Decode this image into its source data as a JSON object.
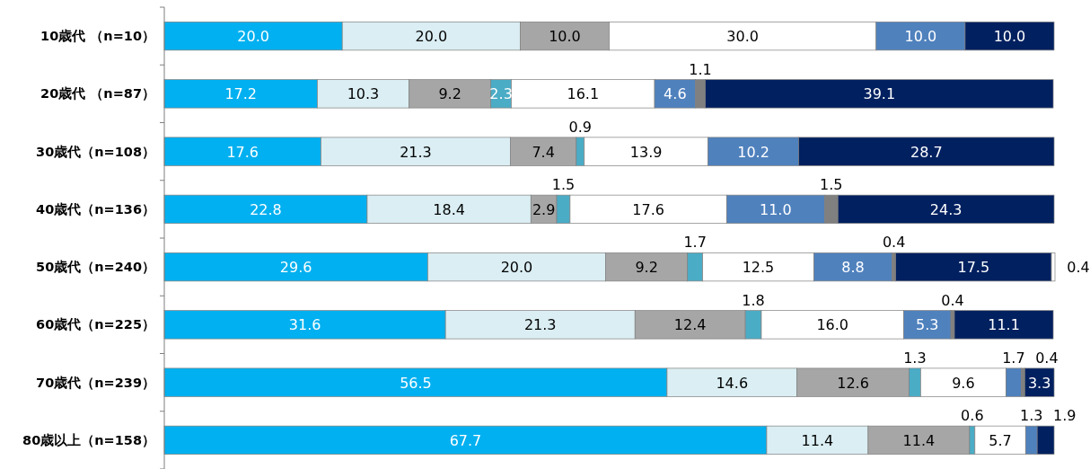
{
  "chart_data": {
    "type": "bar",
    "orientation": "horizontal",
    "stacked": true,
    "categories": [
      "10歳代 （n=10）",
      "20歳代 （n=87）",
      "30歳代（n=108）",
      "40歳代（n=136）",
      "50歳代（n=240）",
      "60歳代（n=225）",
      "70歳代（n=239）",
      "80歳以上（n=158）"
    ],
    "series": [
      {
        "color": "#00b0f0",
        "values": [
          20.0,
          17.2,
          17.6,
          22.8,
          29.6,
          31.6,
          56.5,
          67.7
        ],
        "value_labels": [
          "20.0",
          "17.2",
          "17.6",
          "22.8",
          "29.6",
          "31.6",
          "56.5",
          "67.7"
        ]
      },
      {
        "color": "#daeef3",
        "values": [
          20.0,
          10.3,
          21.3,
          18.4,
          20.0,
          21.3,
          14.6,
          11.4
        ],
        "value_labels": [
          "20.0",
          "10.3",
          "21.3",
          "18.4",
          "20.0",
          "21.3",
          "14.6",
          "11.4"
        ]
      },
      {
        "color": "#a6a6a6",
        "values": [
          10.0,
          9.2,
          7.4,
          2.9,
          9.2,
          12.4,
          12.6,
          11.4
        ],
        "value_labels": [
          "10.0",
          "9.2",
          "7.4",
          "2.9",
          "9.2",
          "12.4",
          "12.6",
          "11.4"
        ]
      },
      {
        "color": "#4bacc6",
        "values": [
          null,
          2.3,
          0.9,
          1.5,
          1.7,
          1.8,
          1.3,
          0.6
        ],
        "value_labels": [
          null,
          "2.3",
          "0.9",
          "1.5",
          "1.7",
          "1.8",
          "1.3",
          "0.6"
        ]
      },
      {
        "color": "#ffffff",
        "values": [
          30.0,
          16.1,
          13.9,
          17.6,
          12.5,
          16.0,
          9.6,
          5.7
        ],
        "value_labels": [
          "30.0",
          "16.1",
          "13.9",
          "17.6",
          "12.5",
          "16.0",
          "9.6",
          "5.7"
        ]
      },
      {
        "color": "#4f81bd",
        "values": [
          10.0,
          4.6,
          10.2,
          11.0,
          8.8,
          5.3,
          1.7,
          1.3
        ],
        "value_labels": [
          "10.0",
          "4.6",
          "10.2",
          "11.0",
          "8.8",
          "5.3",
          "1.7",
          "1.3"
        ]
      },
      {
        "color": "#808080",
        "values": [
          null,
          1.1,
          null,
          1.5,
          0.4,
          0.4,
          0.4,
          null
        ],
        "value_labels": [
          null,
          "1.1",
          null,
          "1.5",
          "0.4",
          "0.4",
          "0.4",
          null
        ]
      },
      {
        "color": "#002060",
        "values": [
          10.0,
          39.1,
          28.7,
          24.3,
          17.5,
          11.1,
          3.3,
          1.9
        ],
        "value_labels": [
          "10.0",
          "39.1",
          "28.7",
          "24.3",
          "17.5",
          "11.1",
          "3.3",
          "1.9"
        ]
      },
      {
        "color": "#ffffff",
        "values": [
          null,
          null,
          null,
          null,
          0.4,
          null,
          null,
          null
        ],
        "value_labels": [
          null,
          null,
          null,
          null,
          "0.4",
          null,
          null,
          null
        ]
      }
    ]
  }
}
